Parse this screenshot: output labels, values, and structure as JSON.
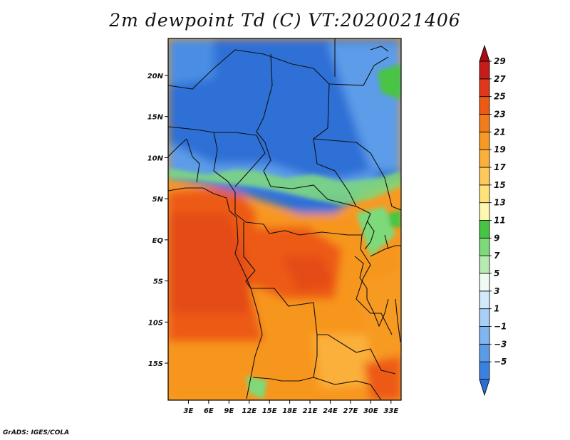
{
  "title": "2m dewpoint Td (C) VT:2020021406",
  "credit": "GrADS: IGES/COLA",
  "map": {
    "lon_range": [
      0,
      34.5
    ],
    "lat_range": [
      -19.5,
      24.5
    ],
    "x_ticks": [
      {
        "value": 3,
        "label": "3E"
      },
      {
        "value": 6,
        "label": "6E"
      },
      {
        "value": 9,
        "label": "9E"
      },
      {
        "value": 12,
        "label": "12E"
      },
      {
        "value": 15,
        "label": "15E"
      },
      {
        "value": 18,
        "label": "18E"
      },
      {
        "value": 21,
        "label": "21E"
      },
      {
        "value": 24,
        "label": "24E"
      },
      {
        "value": 27,
        "label": "27E"
      },
      {
        "value": 30,
        "label": "30E"
      },
      {
        "value": 33,
        "label": "33E"
      }
    ],
    "y_ticks": [
      {
        "value": 20,
        "label": "20N"
      },
      {
        "value": 15,
        "label": "15N"
      },
      {
        "value": 10,
        "label": "10N"
      },
      {
        "value": 5,
        "label": "5N"
      },
      {
        "value": 0,
        "label": "EQ"
      },
      {
        "value": -5,
        "label": "5S"
      },
      {
        "value": -10,
        "label": "10S"
      },
      {
        "value": -15,
        "label": "15S"
      }
    ]
  },
  "colorbar": {
    "colors": [
      "#2a6fd6",
      "#3b82e0",
      "#5b9ce8",
      "#7fb6f0",
      "#a8cff6",
      "#d2e8fb",
      "#eefaf2",
      "#b6eab2",
      "#7ed97a",
      "#48c444",
      "#fff7b0",
      "#ffe27a",
      "#fdc95a",
      "#fbb03b",
      "#f79a24",
      "#f27c1a",
      "#ed5a14",
      "#e0381a",
      "#c41d18",
      "#a40e14"
    ],
    "labels": [
      "29",
      "27",
      "25",
      "23",
      "21",
      "19",
      "17",
      "15",
      "13",
      "11",
      "9",
      "7",
      "5",
      "3",
      "1",
      "−1",
      "−3",
      "−5"
    ]
  }
}
